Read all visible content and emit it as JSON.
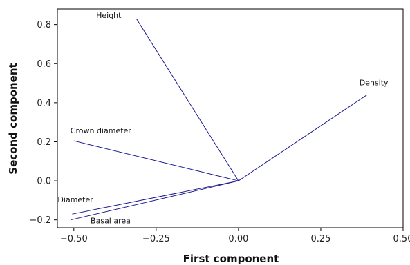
{
  "chart_data": {
    "type": "biplot",
    "xlabel": "First component",
    "ylabel": "Second component",
    "xlim": [
      -0.55,
      0.5
    ],
    "ylim": [
      -0.24,
      0.88
    ],
    "x_ticks": [
      -0.5,
      -0.25,
      0.0,
      0.25,
      0.5
    ],
    "x_tick_labels": [
      "−0.50",
      "−0.25",
      "0.00",
      "0.25",
      "0.50"
    ],
    "y_ticks": [
      -0.2,
      0.0,
      0.2,
      0.4,
      0.6,
      0.8
    ],
    "y_tick_labels": [
      "−0.2",
      "0.0",
      "0.2",
      "0.4",
      "0.6",
      "0.8"
    ],
    "grid": false,
    "line_color": "#1a1a8c",
    "origin": [
      0.0,
      0.0
    ],
    "vectors": [
      {
        "name": "Height",
        "x": -0.31,
        "y": 0.83
      },
      {
        "name": "Density",
        "x": 0.39,
        "y": 0.44
      },
      {
        "name": "Crown diameter",
        "x": -0.5,
        "y": 0.205
      },
      {
        "name": "Diameter",
        "x": -0.505,
        "y": -0.17
      },
      {
        "name": "Basal area",
        "x": -0.51,
        "y": -0.2
      }
    ]
  }
}
